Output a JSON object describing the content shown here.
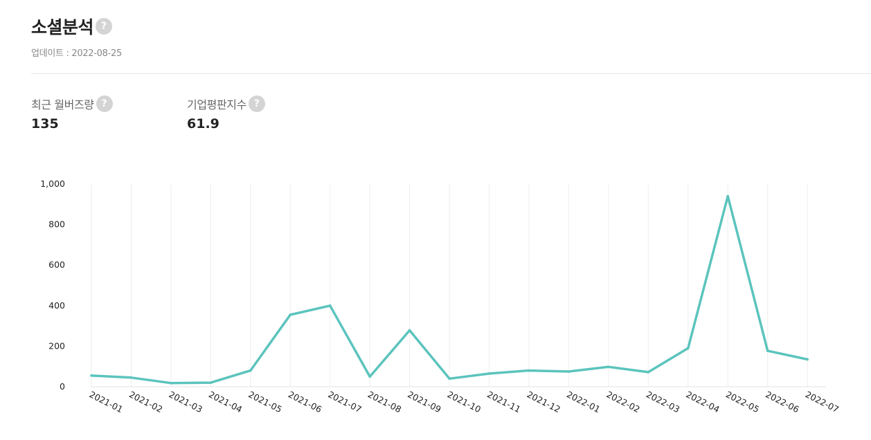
{
  "header": {
    "title": "소셜분석",
    "help_glyph": "?",
    "updated": "업데이트 : 2022-08-25"
  },
  "stats": [
    {
      "label": "최근 월버즈량",
      "value": "135"
    },
    {
      "label": "기업평판지수",
      "value": "61.9"
    }
  ],
  "colors": {
    "line": "#5bc4bd",
    "grid": "#eeeeee",
    "help_bg": "#d4d4d4"
  },
  "chart_data": {
    "type": "line",
    "categories": [
      "2021-01",
      "2021-02",
      "2021-03",
      "2021-04",
      "2021-05",
      "2021-06",
      "2021-07",
      "2021-08",
      "2021-09",
      "2021-10",
      "2021-11",
      "2021-12",
      "2022-01",
      "2022-02",
      "2022-03",
      "2022-04",
      "2022-05",
      "2022-06",
      "2022-07"
    ],
    "series": [
      {
        "values": [
          55,
          45,
          18,
          20,
          80,
          355,
          400,
          50,
          278,
          40,
          65,
          80,
          75,
          98,
          72,
          190,
          940,
          177,
          135
        ]
      }
    ],
    "y_ticks": [
      "0",
      "200",
      "400",
      "600",
      "800",
      "1,000"
    ],
    "ylim": [
      0,
      1000
    ],
    "grid": "vertical"
  }
}
